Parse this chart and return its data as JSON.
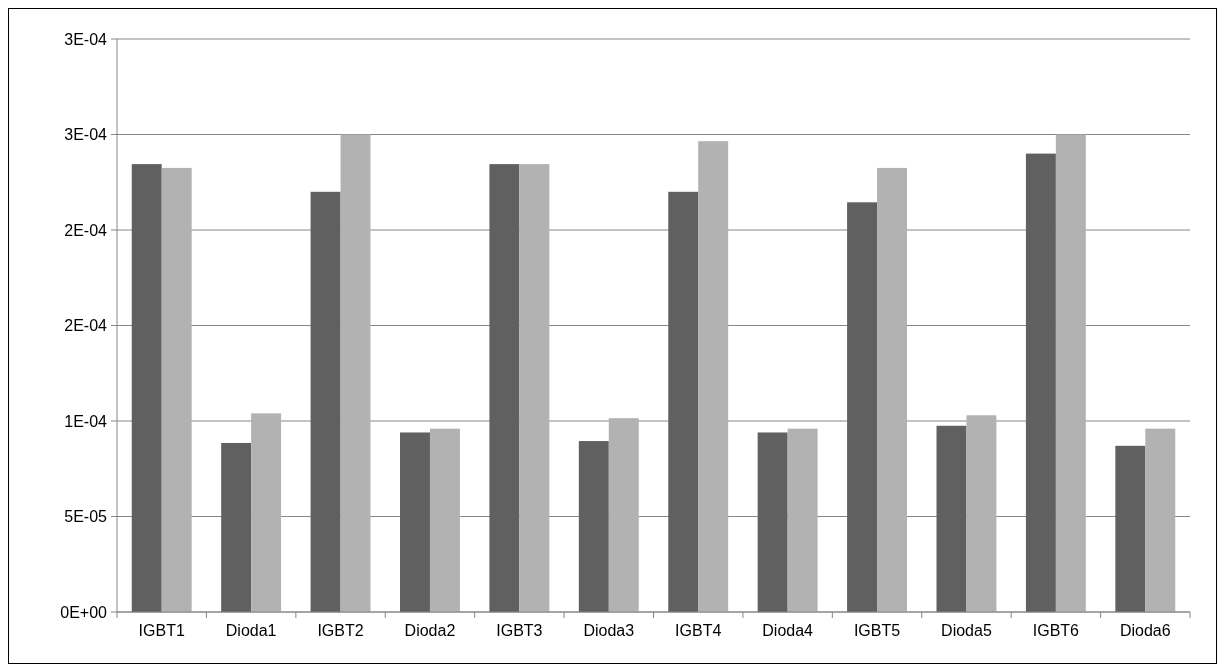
{
  "chart_data": {
    "type": "bar",
    "categories": [
      "IGBT1",
      "Dioda1",
      "IGBT2",
      "Dioda2",
      "IGBT3",
      "Dioda3",
      "IGBT4",
      "Dioda4",
      "IGBT5",
      "Dioda5",
      "IGBT6",
      "Dioda6"
    ],
    "series": [
      {
        "color": "#606060",
        "values": [
          0.0002345,
          8.85e-05,
          0.00022,
          9.4e-05,
          0.0002345,
          8.95e-05,
          0.00022,
          9.4e-05,
          0.0002145,
          9.75e-05,
          0.00024,
          8.7e-05
        ]
      },
      {
        "color": "#b2b2b2",
        "values": [
          0.0002325,
          0.000104,
          0.00025,
          9.6e-05,
          0.0002345,
          0.0001015,
          0.0002465,
          9.6e-05,
          0.0002325,
          0.000103,
          0.00025,
          9.6e-05
        ]
      }
    ],
    "ylim": [
      0,
      0.0003
    ],
    "yticks": [
      {
        "value": 0,
        "label": "0E+00"
      },
      {
        "value": 5e-05,
        "label": "5E-05"
      },
      {
        "value": 0.0001,
        "label": "1E-04"
      },
      {
        "value": 0.00015,
        "label": "2E-04"
      },
      {
        "value": 0.0002,
        "label": "2E-04"
      },
      {
        "value": 0.00025,
        "label": "3E-04"
      },
      {
        "value": 0.0003,
        "label": "3E-04"
      }
    ],
    "grid": "y"
  }
}
